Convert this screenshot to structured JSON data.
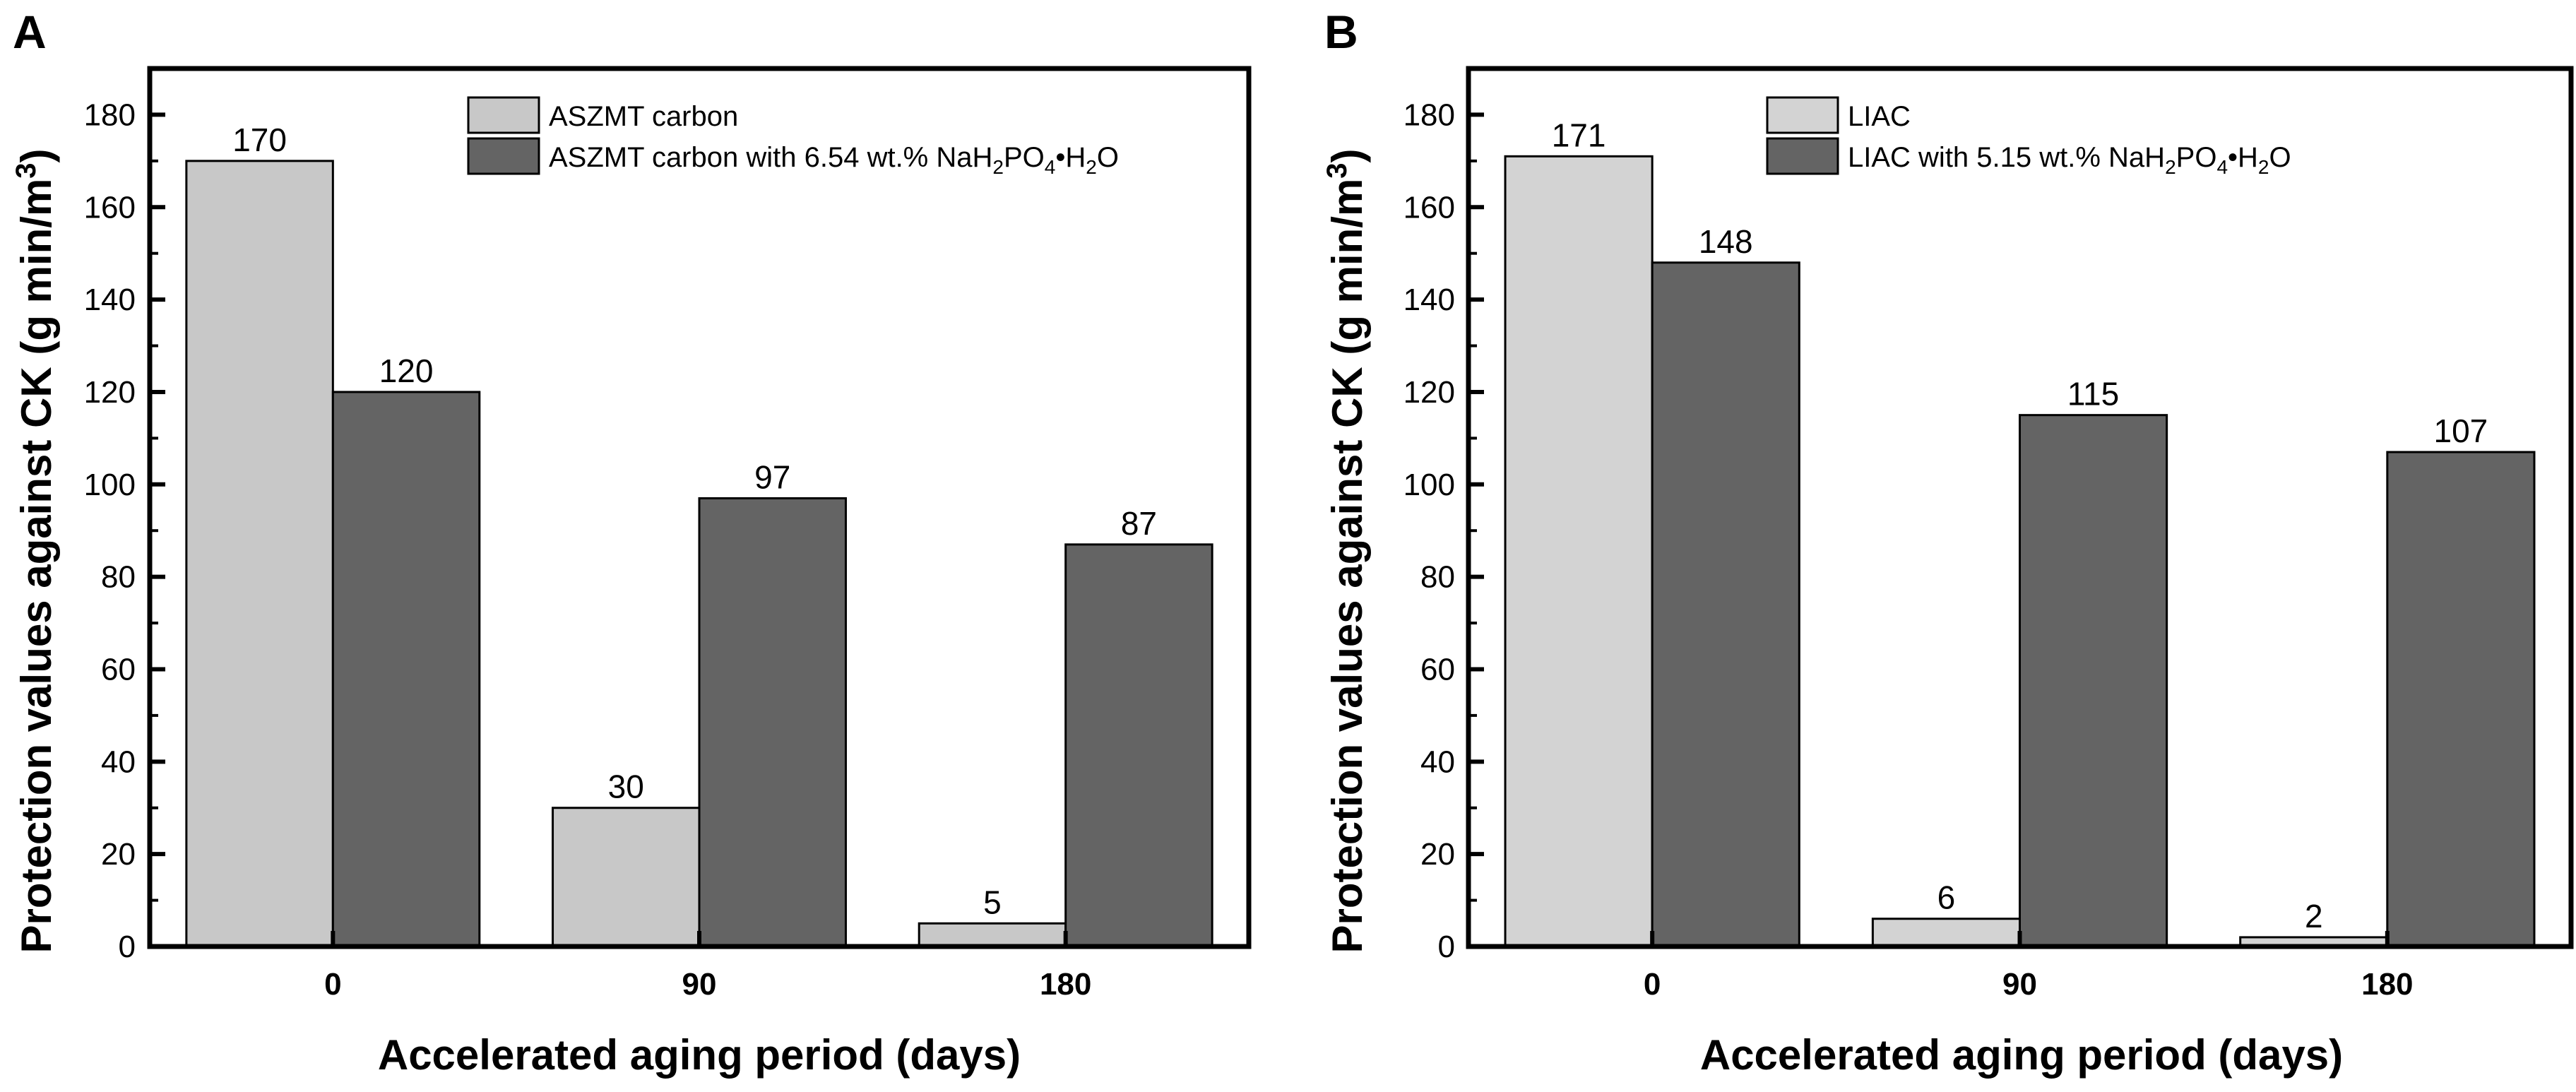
{
  "chart_data": [
    {
      "panel": "A",
      "type": "bar",
      "categories": [
        "0",
        "90",
        "180"
      ],
      "xlabel": "Accelerated aging period (days)",
      "ylabel": "Protection values against CK (g min/m3)",
      "ylim": [
        0,
        190
      ],
      "yticks": [
        0,
        20,
        40,
        60,
        80,
        100,
        120,
        140,
        160,
        180
      ],
      "legend_position": "top-right",
      "grid": false,
      "series": [
        {
          "name": "ASZMT carbon",
          "values": [
            170,
            30,
            5
          ],
          "color": "#c8c8c8"
        },
        {
          "name": "ASZMT carbon with 6.54 wt.% NaH2PO4•H2O",
          "values": [
            120,
            97,
            87
          ],
          "color": "#646464"
        }
      ]
    },
    {
      "panel": "B",
      "type": "bar",
      "categories": [
        "0",
        "90",
        "180"
      ],
      "xlabel": "Accelerated aging period (days)",
      "ylabel": "Protection values against CK (g min/m3)",
      "ylim": [
        0,
        190
      ],
      "yticks": [
        0,
        20,
        40,
        60,
        80,
        100,
        120,
        140,
        160,
        180
      ],
      "legend_position": "top-right",
      "grid": false,
      "series": [
        {
          "name": "LIAC",
          "values": [
            171,
            6,
            2
          ],
          "color": "#d3d3d3"
        },
        {
          "name": "LIAC with 5.15 wt.% NaH2PO4•H2O",
          "values": [
            148,
            115,
            107
          ],
          "color": "#646464"
        }
      ]
    }
  ]
}
